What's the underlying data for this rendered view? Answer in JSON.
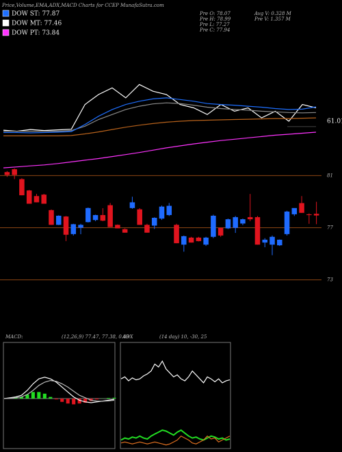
{
  "header": {
    "title": "Price,Volume,EMA,ADX,MACD Charts for CCEP MunafaSutra.com",
    "legend": [
      {
        "label": "DOW ST: 77.87",
        "color": "#1e6fff"
      },
      {
        "label": "DOW MT: 77.46",
        "color": "#ffffff"
      },
      {
        "label": "DOW PT: 73.84",
        "color": "#ff33ff"
      }
    ],
    "info": [
      "Pre  O: 78.07",
      "Pre  H: 78.99",
      "Pre  L: 77.27",
      "Pre  C: 77.94",
      "Avg V: 0.328  M",
      "Pre   V: 1.357 M"
    ]
  },
  "chart_data": [
    {
      "type": "line",
      "ylim": [
        46,
        84
      ],
      "yticks": [
        61.01
      ],
      "series": [
        {
          "color": "#ffffff",
          "values": [
            58.3,
            58.0,
            58.5,
            58.2,
            58.4,
            58.6,
            66,
            69,
            71,
            68,
            72,
            70,
            69,
            66,
            65,
            63,
            66,
            64,
            65,
            62,
            64,
            61,
            66,
            65
          ]
        },
        {
          "color": "#8c8c8c",
          "values": [
            58,
            58,
            58,
            58,
            58,
            58.2,
            59.5,
            61.5,
            63,
            64.5,
            65.5,
            66.2,
            66.5,
            66.3,
            65.8,
            65.2,
            64.8,
            64.5,
            64.3,
            64,
            63.8,
            63.6,
            63.5,
            63.6
          ]
        },
        {
          "color": "#1e6fff",
          "values": [
            57.6,
            57.6,
            57.5,
            57.6,
            57.7,
            57.9,
            60,
            62.5,
            64.5,
            66,
            67,
            67.7,
            68,
            67.5,
            67,
            66.3,
            66,
            65.8,
            65.5,
            65.2,
            64.8,
            64.5,
            64.6,
            65.3
          ]
        },
        {
          "color": "#b8621b",
          "values": [
            56.6,
            56.6,
            56.6,
            56.6,
            56.6,
            56.7,
            57.2,
            57.8,
            58.5,
            59.2,
            59.8,
            60.3,
            60.7,
            61,
            61.2,
            61.3,
            61.4,
            61.5,
            61.6,
            61.7,
            61.8,
            61.8,
            61.9,
            62
          ]
        },
        {
          "color": "#ff33ff",
          "values": [
            47,
            47.3,
            47.6,
            47.9,
            48.3,
            48.8,
            49.3,
            49.8,
            50.4,
            51,
            51.6,
            52.3,
            53,
            53.6,
            54.2,
            54.7,
            55.2,
            55.6,
            56,
            56.4,
            56.8,
            57.1,
            57.4,
            57.7
          ]
        }
      ]
    },
    {
      "type": "candlestick",
      "ylim": [
        72.4,
        81.6
      ],
      "yticks": [
        81,
        77,
        73
      ],
      "grid": true,
      "grid_color": "#8b4513",
      "up_color": "#1f6bff",
      "down_color": "#e0141e",
      "open": [
        81.27,
        81.49,
        80.73,
        79.86,
        79.43,
        79.54,
        78.35,
        77.22,
        77.86,
        76.51,
        77.0,
        77.43,
        77.59,
        77.97,
        78.73,
        77.22,
        76.89,
        78.51,
        78.41,
        77.22,
        77.16,
        77.7,
        77.97,
        77.22,
        75.7,
        76.24,
        76.24,
        75.7,
        76.3,
        76.99,
        76.95,
        76.99,
        77.32,
        77.81,
        77.81,
        75.86,
        75.7,
        75.65,
        76.51,
        78.03,
        78.89,
        78.03,
        78.07
      ],
      "high": [
        81.35,
        81.55,
        80.8,
        79.9,
        79.6,
        79.6,
        78.4,
        77.95,
        77.9,
        77.3,
        77.3,
        78.55,
        78.0,
        78.5,
        78.9,
        77.25,
        76.95,
        79.38,
        78.5,
        77.3,
        77.8,
        78.7,
        78.9,
        77.3,
        76.4,
        76.3,
        76.3,
        76.3,
        78.0,
        77.0,
        77.7,
        77.9,
        77.7,
        79.59,
        77.9,
        76.2,
        76.4,
        76.1,
        78.3,
        78.5,
        79.43,
        78.1,
        78.99
      ],
      "low": [
        80.9,
        80.73,
        79.49,
        78.84,
        78.95,
        78.84,
        77.22,
        77.2,
        75.97,
        76.4,
        76.5,
        77.4,
        77.5,
        77.5,
        77.05,
        76.95,
        76.62,
        78.45,
        77.22,
        76.62,
        76.9,
        77.6,
        77.9,
        75.81,
        75.16,
        75.86,
        75.95,
        75.6,
        76.2,
        76.3,
        76.9,
        76.6,
        77.2,
        77.5,
        75.7,
        75.5,
        74.89,
        75.6,
        76.4,
        77.9,
        78.14,
        77.3,
        77.27
      ],
      "close": [
        81.05,
        81.05,
        79.49,
        78.84,
        78.95,
        78.84,
        77.22,
        77.92,
        76.46,
        77.27,
        77.22,
        78.51,
        77.97,
        77.54,
        77.05,
        76.95,
        76.62,
        78.95,
        77.22,
        76.62,
        77.76,
        78.62,
        78.68,
        75.81,
        76.35,
        75.86,
        75.97,
        76.24,
        77.92,
        76.4,
        77.65,
        77.81,
        77.65,
        77.65,
        75.7,
        76.08,
        76.3,
        76.08,
        78.24,
        78.51,
        78.14,
        77.97,
        77.94
      ]
    },
    {
      "type": "line",
      "title": "MACD:",
      "subtitle": "(12,26,9) 77.47, 77.38, 0.09",
      "ylim": [
        -3,
        3
      ],
      "series": [
        {
          "style": "bar",
          "color": "#22dd22",
          "negative_color": "#e0141e",
          "values": [
            0,
            0.03,
            0.05,
            0.1,
            0.25,
            0.4,
            0.4,
            0.3,
            0.1,
            -0.05,
            -0.2,
            -0.3,
            -0.35,
            -0.3,
            -0.25,
            -0.15,
            -0.05,
            0.01,
            0.04,
            0.05
          ]
        },
        {
          "color": "#ffffff",
          "values": [
            0,
            0.05,
            0.1,
            0.2,
            0.5,
            0.9,
            1.2,
            1.3,
            1.2,
            1.0,
            0.7,
            0.4,
            0.1,
            -0.1,
            -0.2,
            -0.25,
            -0.2,
            -0.15,
            -0.1,
            -0.05
          ]
        },
        {
          "color": "#bbbbbb",
          "values": [
            0,
            0.02,
            0.05,
            0.1,
            0.25,
            0.5,
            0.8,
            1.0,
            1.1,
            1.05,
            0.9,
            0.7,
            0.45,
            0.2,
            0.05,
            -0.1,
            -0.15,
            -0.16,
            -0.14,
            -0.1
          ]
        }
      ]
    },
    {
      "type": "line",
      "title": "ADX",
      "subtitle": "(14 day) 10, -30, 25",
      "ylim": [
        0,
        100
      ],
      "series": [
        {
          "color": "#ffffff",
          "values": [
            70,
            72,
            68,
            71,
            69,
            70,
            73,
            75,
            78,
            85,
            82,
            88,
            80,
            76,
            72,
            74,
            70,
            68,
            72,
            78,
            74,
            70,
            66,
            72,
            70,
            67,
            70,
            66,
            68,
            69
          ]
        },
        {
          "color": "#22dd22",
          "values": [
            8,
            10,
            9,
            11,
            10,
            12,
            10,
            9,
            12,
            14,
            16,
            18,
            17,
            15,
            13,
            16,
            18,
            15,
            12,
            10,
            11,
            9,
            8,
            10,
            12,
            11,
            9,
            10,
            8,
            9
          ]
        },
        {
          "color": "#e07020",
          "values": [
            5,
            6,
            5,
            4,
            5,
            6,
            5,
            4,
            5,
            6,
            5,
            4,
            3,
            4,
            6,
            8,
            12,
            10,
            8,
            5,
            4,
            6,
            8,
            12,
            9,
            10,
            6,
            8,
            10,
            12
          ]
        }
      ]
    }
  ]
}
